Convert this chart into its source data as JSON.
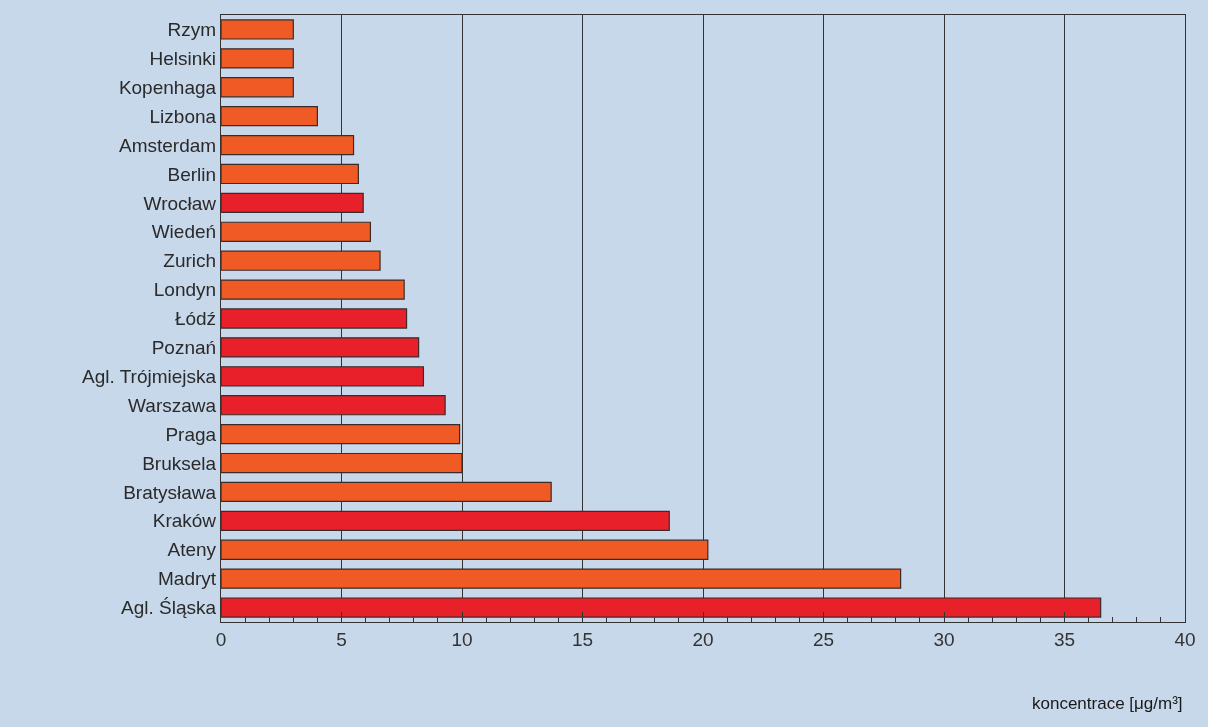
{
  "chart_data": {
    "type": "bar",
    "orientation": "horizontal",
    "xlabel": "koncentrace [μg/m³]",
    "categories": [
      "Rzym",
      "Helsinki",
      "Kopenhaga",
      "Lizbona",
      "Amsterdam",
      "Berlin",
      "Wrocław",
      "Wiedeń",
      "Zurich",
      "Londyn",
      "Łódź",
      "Poznań",
      "Agl. Trójmiejska",
      "Warszawa",
      "Praga",
      "Bruksela",
      "Bratysława",
      "Kraków",
      "Ateny",
      "Madryt",
      "Agl. Śląska"
    ],
    "values": [
      3.0,
      3.0,
      3.0,
      4.0,
      5.5,
      5.7,
      5.9,
      6.2,
      6.6,
      7.6,
      7.7,
      8.2,
      8.4,
      9.3,
      9.9,
      10.0,
      13.7,
      18.6,
      20.2,
      28.2,
      36.5
    ],
    "colors": [
      "#f05a24",
      "#f05a24",
      "#f05a24",
      "#f05a24",
      "#f05a24",
      "#f05a24",
      "#e8202a",
      "#f05a24",
      "#f05a24",
      "#f05a24",
      "#e8202a",
      "#e8202a",
      "#e8202a",
      "#e8202a",
      "#f05a24",
      "#f05a24",
      "#f05a24",
      "#e8202a",
      "#f05a24",
      "#f05a24",
      "#e8202a"
    ],
    "xlim": [
      0,
      40
    ],
    "xticks": [
      0,
      {
        "value": 1,
        "label": null
      },
      {
        "value": 2,
        "label": null
      },
      {
        "value": 3,
        "label": null
      },
      {
        "value": 4,
        "label": null
      },
      5,
      {
        "value": 6,
        "label": null
      },
      {
        "value": 7,
        "label": null
      },
      {
        "value": 8,
        "label": null
      },
      {
        "value": 9,
        "label": null
      },
      10,
      {
        "value": 11,
        "label": null
      },
      {
        "value": 12,
        "label": null
      },
      {
        "value": 13,
        "label": null
      },
      {
        "value": 14,
        "label": null
      },
      15,
      {
        "value": 16,
        "label": null
      },
      {
        "value": 17,
        "label": null
      },
      {
        "value": 18,
        "label": null
      },
      {
        "value": 19,
        "label": null
      },
      20,
      {
        "value": 21,
        "label": null
      },
      {
        "value": 22,
        "label": null
      },
      {
        "value": 23,
        "label": null
      },
      {
        "value": 24,
        "label": null
      },
      25,
      {
        "value": 26,
        "label": null
      },
      {
        "value": 27,
        "label": null
      },
      {
        "value": 28,
        "label": null
      },
      {
        "value": 29,
        "label": null
      },
      30,
      {
        "value": 31,
        "label": null
      },
      {
        "value": 32,
        "label": null
      },
      {
        "value": 33,
        "label": null
      },
      {
        "value": 34,
        "label": null
      },
      35,
      {
        "value": 36,
        "label": null
      },
      {
        "value": 37,
        "label": null
      },
      {
        "value": 38,
        "label": null
      },
      {
        "value": 39,
        "label": null
      },
      40
    ],
    "grid": "x"
  }
}
